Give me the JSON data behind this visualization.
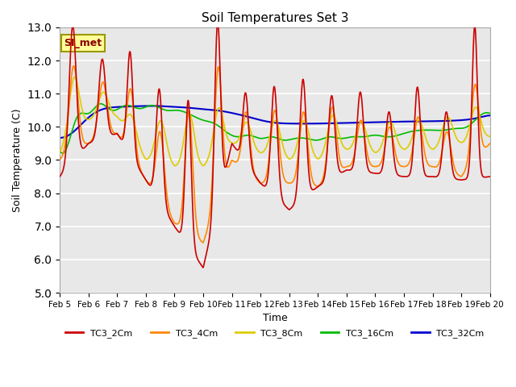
{
  "title": "Soil Temperatures Set 3",
  "xlabel": "Time",
  "ylabel": "Soil Temperature (C)",
  "ylim": [
    5.0,
    13.0
  ],
  "yticks": [
    5.0,
    6.0,
    7.0,
    8.0,
    9.0,
    10.0,
    11.0,
    12.0,
    13.0
  ],
  "xtick_labels": [
    "Feb 5",
    "Feb 6",
    "Feb 7",
    "Feb 8",
    "Feb 9",
    "Feb 10",
    "Feb 11",
    "Feb 12",
    "Feb 13",
    "Feb 14",
    "Feb 15",
    "Feb 16",
    "Feb 17",
    "Feb 18",
    "Feb 19",
    "Feb 20"
  ],
  "annotation_text": "SI_met",
  "colors": {
    "TC3_2Cm": "#cc0000",
    "TC3_4Cm": "#ff8800",
    "TC3_8Cm": "#ddcc00",
    "TC3_16Cm": "#00bb00",
    "TC3_32Cm": "#0000cc"
  },
  "bg_color": "#e8e8e8",
  "series_names": [
    "TC3_2Cm",
    "TC3_4Cm",
    "TC3_8Cm",
    "TC3_16Cm",
    "TC3_32Cm"
  ]
}
